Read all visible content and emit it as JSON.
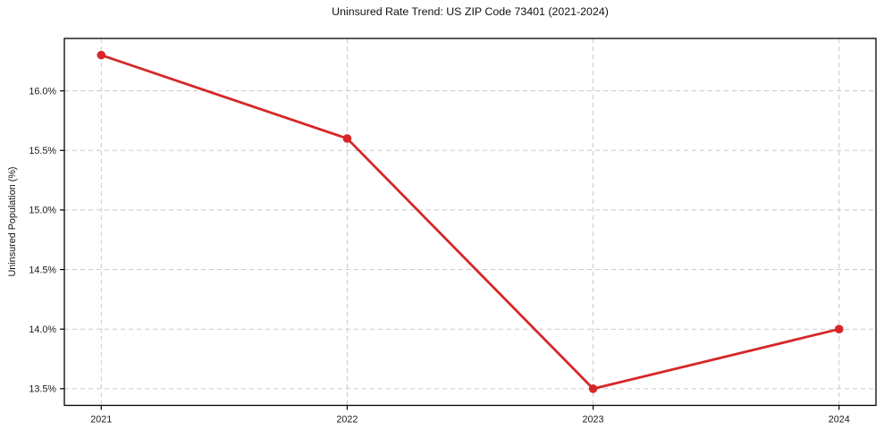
{
  "figure": {
    "title": "Uninsured Rate Trend: US ZIP Code 73401 (2021-2024)",
    "ylabel": "Uninsured Population (%)"
  },
  "chart_data": {
    "type": "line",
    "title": "Uninsured Rate Trend: US ZIP Code 73401 (2021-2024)",
    "xlabel": "",
    "ylabel": "Uninsured Population (%)",
    "x": [
      2021,
      2022,
      2023,
      2024
    ],
    "x_tick_labels": [
      "2021",
      "2022",
      "2023",
      "2024"
    ],
    "values": [
      16.3,
      15.6,
      13.5,
      14.0
    ],
    "y_tick_values": [
      13.5,
      14.0,
      14.5,
      15.0,
      15.5,
      16.0
    ],
    "y_tick_labels": [
      "13.5%",
      "14.0%",
      "14.5%",
      "15.0%",
      "15.5%",
      "16.0%"
    ],
    "xlim": [
      2020.85,
      2024.15
    ],
    "ylim": [
      13.36,
      16.44
    ],
    "grid": true,
    "grid_style": "dashed",
    "legend": false,
    "line_color": "#d62728",
    "grid_color": "#c9c9c9",
    "frame_color": "#000000",
    "background_color": "#ffffff",
    "marker": "circle"
  }
}
